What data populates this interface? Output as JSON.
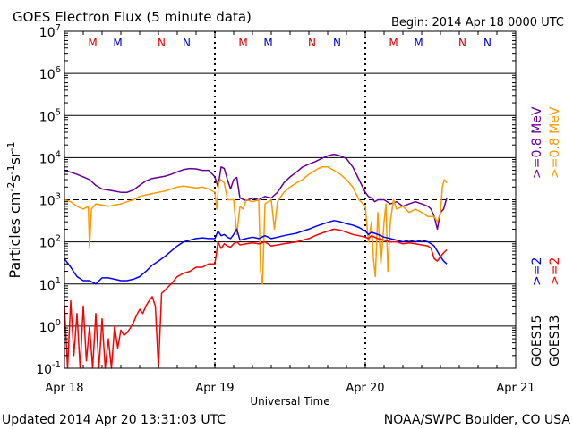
{
  "header": {
    "title": "GOES Electron Flux (5 minute data)",
    "begin": "Begin: 2014 Apr 18 0000 UTC"
  },
  "footer": {
    "updated": "Updated 2014 Apr 20 13:31:03 UTC",
    "credit": "NOAA/SWPC Boulder, CO USA"
  },
  "chart_data": {
    "type": "line",
    "title": "GOES Electron Flux (5 minute data)",
    "xlabel": "Universal Time",
    "ylabel": "Particles cm-2s-1sr-1",
    "ylabel_parts": {
      "base": "Particles cm",
      "e1": "-2",
      "mid": "s",
      "e2": "-1",
      "mid2": "sr",
      "e3": "-1"
    },
    "yscale": "log",
    "ylim": [
      0.1,
      10000000
    ],
    "yticks": [
      {
        "value": 0.1,
        "base": "10",
        "exp": "-1"
      },
      {
        "value": 1,
        "base": "10",
        "exp": "0"
      },
      {
        "value": 10,
        "base": "10",
        "exp": "1"
      },
      {
        "value": 100,
        "base": "10",
        "exp": "2"
      },
      {
        "value": 1000,
        "base": "10",
        "exp": "3"
      },
      {
        "value": 10000,
        "base": "10",
        "exp": "4"
      },
      {
        "value": 100000,
        "base": "10",
        "exp": "5"
      },
      {
        "value": 1000000,
        "base": "10",
        "exp": "6"
      },
      {
        "value": 10000000,
        "base": "10",
        "exp": "7"
      }
    ],
    "xlim": [
      0,
      72
    ],
    "xunits": "hours since 2014 Apr 18 0000 UTC",
    "xticks": [
      {
        "value": 0,
        "label": "Apr 18"
      },
      {
        "value": 24,
        "label": "Apr 19"
      },
      {
        "value": 48,
        "label": "Apr 20"
      },
      {
        "value": 72,
        "label": "Apr 21"
      }
    ],
    "threshold": 1000,
    "markers": [
      {
        "text": "M",
        "x": 4.5,
        "color": "#dd0000"
      },
      {
        "text": "M",
        "x": 8.5,
        "color": "#0000cc"
      },
      {
        "text": "N",
        "x": 15.5,
        "color": "#dd0000"
      },
      {
        "text": "N",
        "x": 19.5,
        "color": "#0000cc"
      },
      {
        "text": "M",
        "x": 28.5,
        "color": "#dd0000"
      },
      {
        "text": "M",
        "x": 32.5,
        "color": "#0000cc"
      },
      {
        "text": "N",
        "x": 39.5,
        "color": "#dd0000"
      },
      {
        "text": "N",
        "x": 43.5,
        "color": "#0000cc"
      },
      {
        "text": "M",
        "x": 52.5,
        "color": "#dd0000"
      },
      {
        "text": "M",
        "x": 56.5,
        "color": "#0000cc"
      },
      {
        "text": "N",
        "x": 63.5,
        "color": "#dd0000"
      },
      {
        "text": "N",
        "x": 67.5,
        "color": "#0000cc"
      }
    ],
    "right_legend": [
      {
        "label": "GOES15",
        "color": "#000000",
        "col": 0,
        "pos": "bottom"
      },
      {
        "label": ">=2",
        "color": "#0000ff",
        "col": 0,
        "pos": "middle"
      },
      {
        "label": ">=0.8 MeV",
        "color": "#660099",
        "col": 0,
        "pos": "top"
      },
      {
        "label": "GOES13",
        "color": "#000000",
        "col": 1,
        "pos": "bottom"
      },
      {
        "label": ">=2",
        "color": "#ff0000",
        "col": 1,
        "pos": "middle"
      },
      {
        "label": ">=0.8 MeV",
        "color": "#ff9900",
        "col": 1,
        "pos": "top"
      }
    ],
    "series": [
      {
        "color": "#660099",
        "x": [
          0,
          1,
          2,
          3,
          4,
          5,
          6,
          7,
          8,
          9,
          10,
          11,
          12,
          13,
          14,
          15,
          16,
          17,
          18,
          19,
          20,
          21,
          22,
          23,
          24,
          24.5,
          25,
          25.5,
          26,
          26.5,
          27,
          27.5,
          28,
          29,
          30,
          31,
          32,
          33,
          34,
          35,
          36,
          37,
          38,
          39,
          40,
          41,
          42,
          43,
          44,
          45,
          46,
          47,
          48,
          48.5,
          49,
          49.5,
          50,
          51,
          52,
          53,
          54,
          55,
          56,
          57,
          58,
          58.5,
          59,
          59.5,
          60,
          60.5,
          61
        ],
        "y": [
          5000,
          4500,
          4000,
          3500,
          3000,
          2200,
          1800,
          1700,
          1600,
          1500,
          1500,
          1700,
          2200,
          2800,
          3200,
          3400,
          3600,
          4000,
          4600,
          5200,
          5500,
          5400,
          5000,
          5000,
          3500,
          2000,
          6000,
          5500,
          3000,
          1800,
          3000,
          3400,
          1100,
          950,
          1100,
          1000,
          1200,
          1100,
          1500,
          2500,
          3500,
          4500,
          6000,
          7000,
          8000,
          9500,
          11000,
          12000,
          11000,
          9500,
          6000,
          3000,
          1500,
          1200,
          1100,
          900,
          1000,
          1000,
          800,
          900,
          700,
          800,
          900,
          800,
          700,
          600,
          400,
          200,
          500,
          600,
          1100
        ]
      },
      {
        "color": "#ff9900",
        "x": [
          0,
          1,
          2,
          3,
          3.8,
          4,
          4.3,
          5,
          6,
          7,
          8,
          9,
          10,
          11,
          12,
          13,
          14,
          15,
          16,
          17,
          18,
          19,
          20,
          21,
          22,
          23,
          24,
          24.3,
          24.6,
          25,
          25.5,
          26,
          27,
          27.5,
          28,
          28.5,
          29,
          30,
          31,
          31.3,
          31.6,
          32,
          33,
          33.5,
          34,
          35,
          36,
          37,
          38,
          39,
          40,
          41,
          42,
          43,
          44,
          45,
          46,
          47,
          48,
          48.5,
          49,
          49.3,
          49.6,
          50,
          50.5,
          51,
          51.3,
          51.6,
          52,
          52.5,
          53,
          54,
          55,
          56,
          57,
          58,
          59,
          59.5,
          60,
          60.3,
          60.6,
          61
        ],
        "y": [
          1000,
          900,
          700,
          600,
          700,
          70,
          600,
          800,
          750,
          700,
          750,
          800,
          900,
          1000,
          1200,
          1300,
          1400,
          1500,
          1600,
          1800,
          2000,
          2100,
          2000,
          1900,
          2000,
          1800,
          1500,
          600,
          2500,
          3000,
          2500,
          1000,
          1000,
          150,
          700,
          600,
          1000,
          900,
          1000,
          20,
          10,
          800,
          1000,
          200,
          900,
          1500,
          2000,
          2500,
          3000,
          4000,
          5000,
          6000,
          6000,
          5000,
          4000,
          3000,
          2000,
          1000,
          700,
          100,
          300,
          40,
          15,
          500,
          30,
          300,
          800,
          20,
          300,
          1000,
          600,
          700,
          500,
          600,
          500,
          400,
          400,
          300,
          500,
          2000,
          3000,
          2500
        ]
      },
      {
        "color": "#0000ff",
        "x": [
          0,
          1,
          2,
          3,
          4,
          5,
          6,
          7,
          8,
          9,
          10,
          11,
          12,
          13,
          14,
          15,
          16,
          17,
          18,
          19,
          20,
          21,
          22,
          23,
          24,
          24.5,
          25,
          25.5,
          26,
          26.5,
          27,
          27.5,
          28,
          29,
          30,
          31,
          32,
          33,
          34,
          35,
          36,
          37,
          38,
          39,
          40,
          41,
          42,
          43,
          44,
          45,
          46,
          47,
          48,
          48.5,
          49,
          49.5,
          50,
          51,
          52,
          53,
          54,
          55,
          56,
          57,
          58,
          58.5,
          59,
          59.5,
          60,
          60.5,
          61
        ],
        "y": [
          40,
          25,
          15,
          12,
          12,
          10,
          14,
          14,
          13,
          12,
          12,
          13,
          15,
          20,
          28,
          35,
          45,
          60,
          80,
          100,
          110,
          120,
          125,
          120,
          120,
          180,
          140,
          150,
          130,
          120,
          150,
          200,
          110,
          120,
          130,
          120,
          140,
          120,
          130,
          140,
          150,
          160,
          180,
          200,
          230,
          260,
          290,
          320,
          300,
          270,
          250,
          220,
          180,
          150,
          170,
          160,
          150,
          130,
          120,
          110,
          100,
          110,
          100,
          110,
          100,
          90,
          80,
          60,
          45,
          35,
          30
        ]
      },
      {
        "color": "#ff0000",
        "x": [
          0,
          0.5,
          1,
          1.5,
          2,
          2.5,
          3,
          3.5,
          4,
          4.5,
          5,
          5.5,
          6,
          6.5,
          7,
          7.5,
          8,
          8.5,
          9,
          9.5,
          10,
          10.5,
          11,
          11.5,
          12,
          12.5,
          13,
          13.5,
          14,
          14.5,
          15,
          15.5,
          16,
          17,
          18,
          19,
          20,
          21,
          22,
          23,
          24,
          24.5,
          25,
          25.5,
          26,
          26.5,
          27,
          27.5,
          28,
          29,
          30,
          31,
          32,
          33,
          34,
          35,
          36,
          37,
          38,
          39,
          40,
          41,
          42,
          43,
          44,
          45,
          46,
          47,
          48,
          48.5,
          49,
          49.5,
          50,
          51,
          52,
          53,
          54,
          55,
          56,
          57,
          58,
          58.5,
          59,
          59.5,
          60,
          60.5,
          61
        ],
        "y": [
          3,
          0.1,
          4,
          0.2,
          2,
          0.1,
          3,
          0.15,
          1,
          0.1,
          2,
          0.1,
          1.5,
          0.1,
          0.5,
          0.1,
          1,
          0.3,
          0.8,
          0.6,
          0.7,
          0.9,
          1.2,
          1.8,
          2.5,
          2,
          3,
          4,
          5,
          3,
          0.1,
          6,
          7,
          10,
          15,
          18,
          20,
          25,
          25,
          30,
          30,
          100,
          70,
          90,
          80,
          75,
          90,
          100,
          85,
          90,
          95,
          90,
          100,
          80,
          85,
          90,
          95,
          100,
          110,
          120,
          140,
          160,
          180,
          200,
          190,
          170,
          150,
          140,
          130,
          120,
          140,
          130,
          120,
          110,
          100,
          100,
          90,
          95,
          90,
          85,
          80,
          70,
          40,
          35,
          45,
          55,
          65
        ]
      }
    ]
  }
}
